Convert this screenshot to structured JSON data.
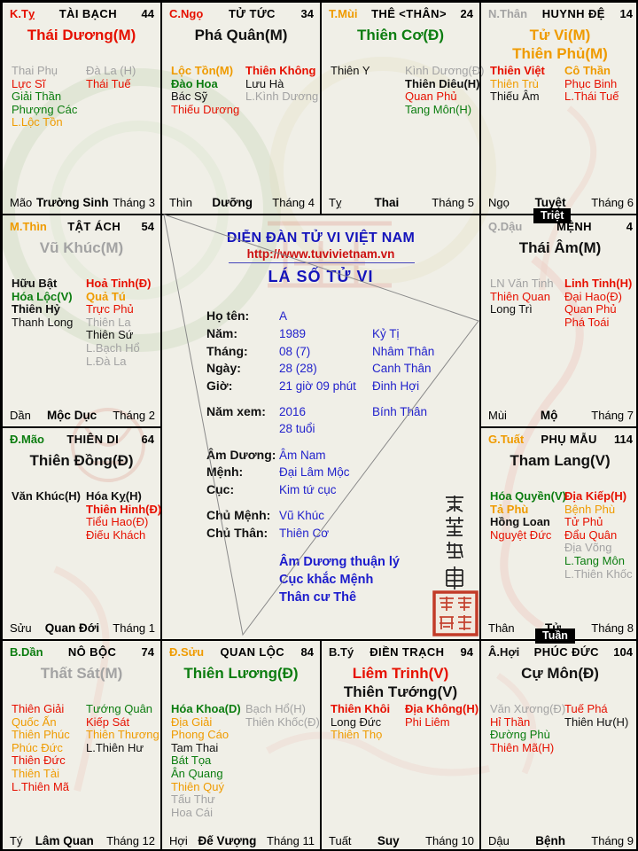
{
  "palette": {
    "red": "#e61000",
    "green": "#0c7d10",
    "orange": "#ef9b00",
    "gray": "#a3a3a3",
    "black": "#111111",
    "blue": "#2222cc",
    "title_blue": "#1414bb",
    "url_red": "#cc1111",
    "seal_red": "#c23b28",
    "background": "#f0efe7"
  },
  "center": {
    "forum_title": "DIỄN ĐÀN TỬ VI VIỆT NAM",
    "url": "http://www.tuvivietnam.vn",
    "chart_title": "LÁ SỐ TỬ VI",
    "rows": [
      {
        "label": "Họ tên:",
        "v1": "A",
        "v2": ""
      },
      {
        "label": "Năm:",
        "v1": "1989",
        "v2": "Kỷ Tị"
      },
      {
        "label": "Tháng:",
        "v1": "08 (7)",
        "v2": "Nhâm Thân"
      },
      {
        "label": "Ngày:",
        "v1": "28 (28)",
        "v2": "Canh Thân"
      },
      {
        "label": "Giờ:",
        "v1": "21 giờ 09 phút",
        "v2": "Đinh Hợi"
      },
      {
        "label": "Năm xem:",
        "v1": "2016",
        "v2": "Bính Thân",
        "gap": true
      },
      {
        "label": "",
        "v1": "28 tuổi",
        "v2": ""
      },
      {
        "label": "Âm Dương:",
        "v1": "Âm Nam",
        "v2": "",
        "gap": true
      },
      {
        "label": "Mệnh:",
        "v1": "Đại Lâm Mộc",
        "v2": ""
      },
      {
        "label": "Cục:",
        "v1": "Kim tứ cục",
        "v2": ""
      },
      {
        "label": "Chủ Mệnh:",
        "v1": "Vũ Khúc",
        "v2": "",
        "gap": true
      },
      {
        "label": "Chủ Thân:",
        "v1": "Thiên Cơ",
        "v2": ""
      }
    ],
    "notes": [
      "Âm Dương thuận lý",
      "Cục khắc Mệnh",
      "Thân cư Thê"
    ],
    "calligraphy_characters": [
      "紫",
      "薇",
      "越",
      "南"
    ],
    "seal_characters": [
      "紫",
      "微",
      "越",
      "南"
    ]
  },
  "badges": {
    "triet": "Triệt",
    "tuan": "Tuần"
  },
  "houses": [
    {
      "slug": "tai-bach",
      "col": 0,
      "row": 0,
      "stem": "K.Tỵ",
      "stem_color": "red",
      "name": "TÀI BẠCH",
      "number": "44",
      "titles": [
        {
          "t": "Thái Dương(M)",
          "c": "red"
        }
      ],
      "left": [
        {
          "t": "Thai Phụ",
          "c": "gray"
        },
        {
          "t": "Lực Sĩ",
          "c": "red"
        },
        {
          "t": "Giải Thần",
          "c": "green"
        },
        {
          "t": "Phượng Các",
          "c": "green"
        },
        {
          "t": "L.Lộc Tồn",
          "c": "orange"
        }
      ],
      "right": [
        {
          "t": "Đà La (H)",
          "c": "gray"
        },
        {
          "t": "Thái Tuế",
          "c": "red"
        }
      ],
      "branch": "Mão",
      "stage": "Trường Sinh",
      "month": "Tháng 3"
    },
    {
      "slug": "tu-tuc",
      "col": 1,
      "row": 0,
      "stem": "C.Ngọ",
      "stem_color": "red",
      "name": "TỬ TỨC",
      "number": "34",
      "titles": [
        {
          "t": "Phá Quân(M)",
          "c": "black"
        }
      ],
      "left": [
        {
          "t": "Lộc Tồn(M)",
          "c": "orange",
          "b": true
        },
        {
          "t": "Đào Hoa",
          "c": "green",
          "b": true
        },
        {
          "t": "Bác Sỹ",
          "c": "black"
        },
        {
          "t": "Thiếu Dương",
          "c": "red"
        }
      ],
      "right": [
        {
          "t": "Thiên Không",
          "c": "red",
          "b": true
        },
        {
          "t": "Lưu Hà",
          "c": "black"
        },
        {
          "t": "L.Kình Dương",
          "c": "gray"
        }
      ],
      "branch": "Thìn",
      "stage": "Dưỡng",
      "month": "Tháng 4"
    },
    {
      "slug": "the-than",
      "col": 2,
      "row": 0,
      "stem": "T.Mùi",
      "stem_color": "orange",
      "name": "THÊ <THÂN>",
      "number": "24",
      "titles": [
        {
          "t": "Thiên Cơ(Đ)",
          "c": "green"
        }
      ],
      "left": [
        {
          "t": "Thiên Y",
          "c": "black"
        }
      ],
      "right": [
        {
          "t": "Kình Dương(Đ)",
          "c": "gray"
        },
        {
          "t": "Thiên Diêu(H)",
          "c": "black",
          "b": true
        },
        {
          "t": "Quan Phủ",
          "c": "red"
        },
        {
          "t": "Tang Môn(H)",
          "c": "green"
        }
      ],
      "branch": "Tỵ",
      "stage": "Thai",
      "month": "Tháng 5"
    },
    {
      "slug": "huynh-de",
      "col": 3,
      "row": 0,
      "stem": "N.Thân",
      "stem_color": "gray",
      "name": "HUYNH ĐỆ",
      "number": "14",
      "titles": [
        {
          "t": "Tử Vi(M)",
          "c": "orange"
        },
        {
          "t": "Thiên Phủ(M)",
          "c": "orange"
        }
      ],
      "left": [
        {
          "t": "Thiên Việt",
          "c": "red",
          "b": true
        },
        {
          "t": "Thiên Trù",
          "c": "orange"
        },
        {
          "t": "Thiếu Âm",
          "c": "black"
        }
      ],
      "right": [
        {
          "t": "Cô Thần",
          "c": "orange",
          "b": true
        },
        {
          "t": "Phục Binh",
          "c": "red"
        },
        {
          "t": "L.Thái Tuế",
          "c": "red"
        }
      ],
      "branch": "Ngọ",
      "stage": "Tuyệt",
      "month": "Tháng 6"
    },
    {
      "slug": "tat-ach",
      "col": 0,
      "row": 1,
      "stem": "M.Thìn",
      "stem_color": "orange",
      "name": "TẬT ÁCH",
      "number": "54",
      "titles": [
        {
          "t": "Vũ Khúc(M)",
          "c": "gray"
        }
      ],
      "left": [
        {
          "t": "Hữu Bật",
          "c": "black",
          "b": true
        },
        {
          "t": "Hóa Lộc(V)",
          "c": "green",
          "b": true
        },
        {
          "t": "Thiên Hỷ",
          "c": "black",
          "b": true
        },
        {
          "t": "Thanh Long",
          "c": "black"
        }
      ],
      "right": [
        {
          "t": "Hoả Tinh(Đ)",
          "c": "red",
          "b": true
        },
        {
          "t": "Quả Tú",
          "c": "orange",
          "b": true
        },
        {
          "t": "Trực Phủ",
          "c": "red"
        },
        {
          "t": "Thiên La",
          "c": "gray"
        },
        {
          "t": "Thiên Sứ",
          "c": "black"
        },
        {
          "t": "L.Bạch Hổ",
          "c": "gray"
        },
        {
          "t": "L.Đà La",
          "c": "gray"
        }
      ],
      "branch": "Dần",
      "stage": "Mộc Dục",
      "month": "Tháng 2"
    },
    {
      "slug": "menh",
      "col": 3,
      "row": 1,
      "stem": "Q.Dậu",
      "stem_color": "gray",
      "name": "MỆNH",
      "number": "4",
      "titles": [
        {
          "t": "Thái Âm(M)",
          "c": "black"
        }
      ],
      "left": [
        {
          "t": "LN Văn Tinh",
          "c": "gray"
        },
        {
          "t": "Thiên Quan",
          "c": "red"
        },
        {
          "t": "Long Trì",
          "c": "black"
        }
      ],
      "right": [
        {
          "t": "Linh Tinh(H)",
          "c": "red",
          "b": true
        },
        {
          "t": "Đại Hao(Đ)",
          "c": "red"
        },
        {
          "t": "Quan Phủ",
          "c": "red"
        },
        {
          "t": "Phá Toái",
          "c": "red"
        }
      ],
      "branch": "Mùi",
      "stage": "Mộ",
      "month": "Tháng 7"
    },
    {
      "slug": "thien-di",
      "col": 0,
      "row": 2,
      "stem": "Đ.Mão",
      "stem_color": "green",
      "name": "THIÊN DI",
      "number": "64",
      "titles": [
        {
          "t": "Thiên Đồng(Đ)",
          "c": "black"
        }
      ],
      "left": [
        {
          "t": "Văn Khúc(H)",
          "c": "black",
          "b": true
        }
      ],
      "right": [
        {
          "t": "Hóa Kỵ(H)",
          "c": "black",
          "b": true
        },
        {
          "t": "Thiên Hinh(Đ)",
          "c": "red",
          "b": true
        },
        {
          "t": "Tiểu Hao(Đ)",
          "c": "red"
        },
        {
          "t": "Điếu Khách",
          "c": "red"
        }
      ],
      "branch": "Sửu",
      "stage": "Quan Đới",
      "month": "Tháng 1"
    },
    {
      "slug": "phu-mau",
      "col": 3,
      "row": 2,
      "stem": "G.Tuất",
      "stem_color": "orange",
      "name": "PHỤ MẪU",
      "number": "114",
      "titles": [
        {
          "t": "Tham Lang(V)",
          "c": "black"
        }
      ],
      "left": [
        {
          "t": "Hóa Quyền(V)",
          "c": "green",
          "b": true
        },
        {
          "t": "Tả Phù",
          "c": "orange",
          "b": true
        },
        {
          "t": "Hồng Loan",
          "c": "black",
          "b": true
        },
        {
          "t": "Nguyệt Đức",
          "c": "red"
        }
      ],
      "right": [
        {
          "t": "Địa Kiếp(H)",
          "c": "red",
          "b": true
        },
        {
          "t": "Bệnh Phù",
          "c": "orange"
        },
        {
          "t": "Tử Phủ",
          "c": "red"
        },
        {
          "t": "Đẩu Quân",
          "c": "red"
        },
        {
          "t": "Địa Võng",
          "c": "gray"
        },
        {
          "t": "L.Tang Môn",
          "c": "green"
        },
        {
          "t": "L.Thiên Khốc",
          "c": "gray"
        }
      ],
      "branch": "Thân",
      "stage": "Tử",
      "month": "Tháng 8"
    },
    {
      "slug": "no-boc",
      "col": 0,
      "row": 3,
      "stem": "B.Dần",
      "stem_color": "green",
      "name": "NÔ BỘC",
      "number": "74",
      "titles": [
        {
          "t": "Thất Sát(M)",
          "c": "gray"
        }
      ],
      "left": [
        {
          "t": "Thiên Giải",
          "c": "red"
        },
        {
          "t": "Quốc Ấn",
          "c": "orange"
        },
        {
          "t": "Thiên Phúc",
          "c": "orange"
        },
        {
          "t": "Phúc Đức",
          "c": "orange"
        },
        {
          "t": "Thiên Đức",
          "c": "red"
        },
        {
          "t": "Thiên Tài",
          "c": "orange"
        },
        {
          "t": "L.Thiên Mã",
          "c": "red"
        }
      ],
      "right": [
        {
          "t": "Tướng Quân",
          "c": "green"
        },
        {
          "t": "Kiếp Sát",
          "c": "red"
        },
        {
          "t": "Thiên Thương",
          "c": "orange"
        },
        {
          "t": "L.Thiên Hư",
          "c": "black"
        }
      ],
      "branch": "Tý",
      "stage": "Lâm Quan",
      "month": "Tháng 12"
    },
    {
      "slug": "quan-loc",
      "col": 1,
      "row": 3,
      "stem": "Đ.Sửu",
      "stem_color": "orange",
      "name": "QUAN LỘC",
      "number": "84",
      "titles": [
        {
          "t": "Thiên Lương(Đ)",
          "c": "green"
        }
      ],
      "left": [
        {
          "t": "Hóa Khoa(D)",
          "c": "green",
          "b": true
        },
        {
          "t": "Địa Giải",
          "c": "orange"
        },
        {
          "t": "Phong Cáo",
          "c": "orange"
        },
        {
          "t": "Tam Thai",
          "c": "black"
        },
        {
          "t": "Bát Tọa",
          "c": "green"
        },
        {
          "t": "Ân Quang",
          "c": "green"
        },
        {
          "t": "Thiên Quý",
          "c": "orange"
        },
        {
          "t": "Tấu Thư",
          "c": "gray"
        },
        {
          "t": "Hoa Cái",
          "c": "gray"
        }
      ],
      "right": [
        {
          "t": "Bạch Hổ(H)",
          "c": "gray"
        },
        {
          "t": "Thiên Khốc(Đ)",
          "c": "gray"
        }
      ],
      "branch": "Hợi",
      "stage": "Đế Vượng",
      "month": "Tháng 11"
    },
    {
      "slug": "dien-trach",
      "col": 2,
      "row": 3,
      "stem": "B.Tý",
      "stem_color": "black",
      "name": "ĐIỀN TRẠCH",
      "number": "94",
      "titles": [
        {
          "t": "Liêm Trinh(V)",
          "c": "red"
        },
        {
          "t": "Thiên Tướng(V)",
          "c": "black"
        }
      ],
      "left": [
        {
          "t": "Thiên Khôi",
          "c": "red",
          "b": true
        },
        {
          "t": "Long Đức",
          "c": "black"
        },
        {
          "t": "Thiên Thọ",
          "c": "orange"
        }
      ],
      "right": [
        {
          "t": "Địa Không(H)",
          "c": "red",
          "b": true
        },
        {
          "t": "Phi Liêm",
          "c": "red"
        }
      ],
      "branch": "Tuất",
      "stage": "Suy",
      "month": "Tháng 10"
    },
    {
      "slug": "phuc-duc",
      "col": 3,
      "row": 3,
      "stem": "Â.Hợi",
      "stem_color": "black",
      "name": "PHÚC ĐỨC",
      "number": "104",
      "titles": [
        {
          "t": "Cự Môn(Đ)",
          "c": "black"
        }
      ],
      "left": [
        {
          "t": "Văn Xương(Đ)",
          "c": "gray"
        },
        {
          "t": "Hỉ Thần",
          "c": "red"
        },
        {
          "t": "Đường Phù",
          "c": "green"
        },
        {
          "t": "Thiên Mã(H)",
          "c": "red"
        }
      ],
      "right": [
        {
          "t": "Tuế Phá",
          "c": "red"
        },
        {
          "t": "Thiên Hư(H)",
          "c": "black"
        }
      ],
      "branch": "Dậu",
      "stage": "Bệnh",
      "month": "Tháng 9"
    }
  ]
}
